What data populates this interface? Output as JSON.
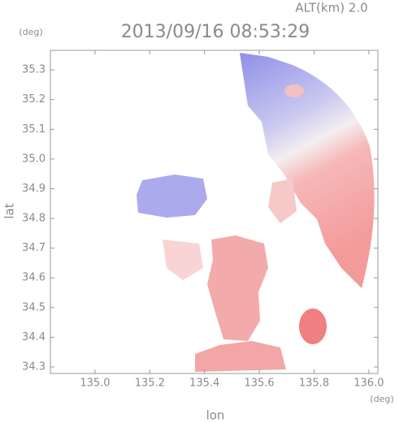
{
  "chart_data": {
    "type": "map",
    "title": "2013/09/16 08:53:29",
    "subtitle": "ALT(km) 2.0",
    "y_unit": "(deg)",
    "x_unit": "(deg)",
    "xlabel": "lon",
    "ylabel": "lat",
    "xlim": [
      134.837,
      136.033
    ],
    "ylim": [
      34.278,
      35.366
    ],
    "xticks": [
      {
        "value": 135,
        "label": "135.0"
      },
      135.2,
      135.4,
      135.6,
      135.8,
      {
        "value": 136,
        "label": "136.0"
      }
    ],
    "yticks": [
      34.3,
      34.4,
      34.5,
      34.6,
      34.7,
      34.8,
      34.9,
      {
        "value": 35,
        "label": "35.0"
      },
      35.1,
      35.2,
      35.3
    ]
  }
}
